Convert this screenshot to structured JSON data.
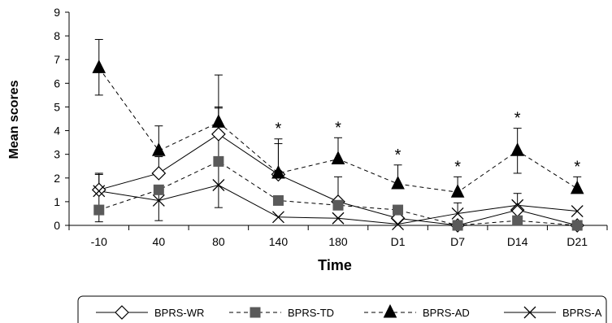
{
  "chart_data": {
    "type": "line",
    "xlabel": "Time",
    "ylabel": "Mean scores",
    "ylim": [
      0,
      9
    ],
    "yticks": [
      "0",
      "1",
      "2",
      "3",
      "4",
      "5",
      "6",
      "7",
      "8",
      "9"
    ],
    "categories": [
      "-10",
      "40",
      "80",
      "140",
      "180",
      "D1",
      "D7",
      "D14",
      "D21"
    ],
    "significance_marker": "*",
    "significant_categories": [
      "140",
      "180",
      "D1",
      "D7",
      "D14",
      "D21"
    ],
    "legend_position": "bottom",
    "series": [
      {
        "name": "BPRS-WR",
        "marker": "open-diamond",
        "line": "solid",
        "color": "#000000",
        "values": [
          1.5,
          2.2,
          3.85,
          2.15,
          1.0,
          0.3,
          0.0,
          0.65,
          0.0
        ],
        "error_up": [
          0.7,
          0.7,
          1.1,
          1.3,
          1.05,
          null,
          null,
          null,
          null
        ]
      },
      {
        "name": "BPRS-TD",
        "marker": "filled-square",
        "line": "dashed",
        "color": "#5a5a5a",
        "values": [
          0.65,
          1.5,
          2.7,
          1.05,
          0.85,
          0.65,
          0.0,
          0.2,
          0.0
        ],
        "error_up": [
          null,
          null,
          null,
          null,
          null,
          null,
          null,
          null,
          null
        ]
      },
      {
        "name": "BPRS-AD",
        "marker": "filled-triangle",
        "line": "dashed",
        "color": "#000000",
        "values": [
          6.65,
          3.15,
          4.35,
          2.2,
          2.8,
          1.75,
          1.4,
          3.15,
          1.55
        ],
        "error_up": [
          1.2,
          1.05,
          2.0,
          1.45,
          0.9,
          0.8,
          0.65,
          0.95,
          0.5
        ],
        "error_down": [
          1.15,
          null,
          null,
          null,
          null,
          null,
          null,
          0.95,
          null
        ]
      },
      {
        "name": "BPRS-A",
        "marker": "x",
        "line": "solid",
        "color": "#000000",
        "values": [
          1.45,
          1.05,
          1.7,
          0.35,
          0.3,
          0.05,
          0.5,
          0.85,
          0.6
        ],
        "error_up": [
          0.7,
          0.6,
          3.3,
          null,
          null,
          null,
          0.45,
          0.5,
          null
        ],
        "error_down": [
          1.3,
          0.85,
          0.95,
          null,
          null,
          null,
          null,
          null,
          null
        ]
      }
    ]
  }
}
